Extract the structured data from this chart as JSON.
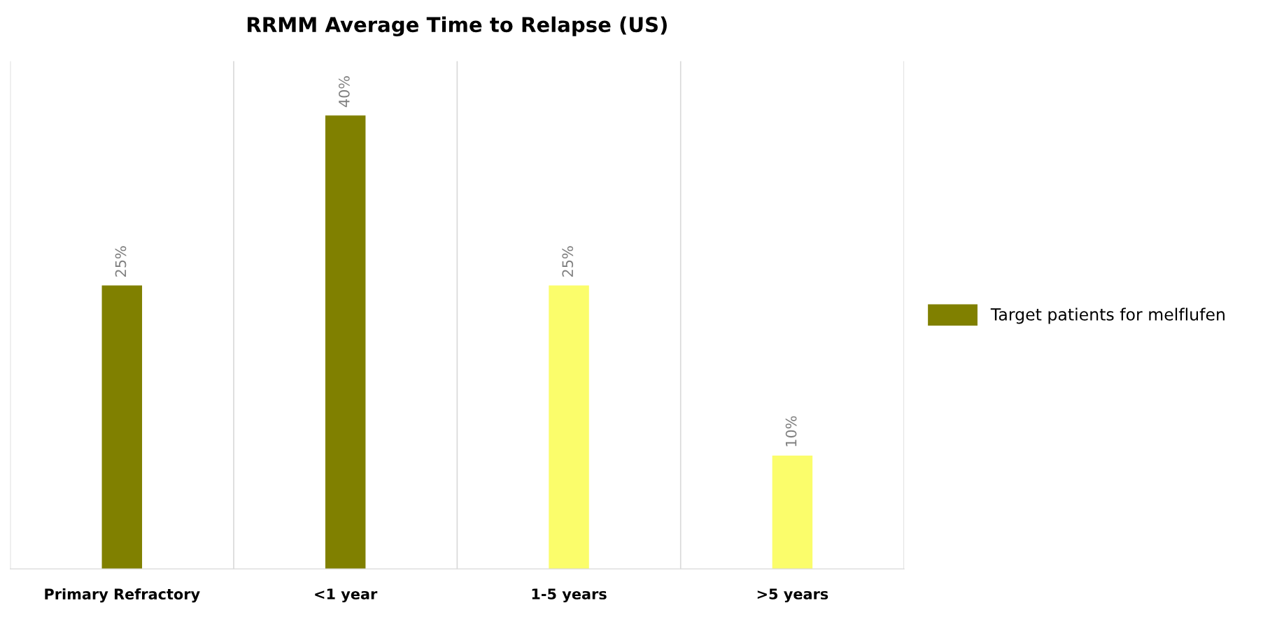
{
  "chart_data": {
    "type": "bar",
    "title": "RRMM Average Time to Relapse (US)",
    "categories": [
      "Primary Refractory",
      "<1 year",
      "1-5 years",
      ">5 years"
    ],
    "series": [
      {
        "name": "Target patients for melflufen",
        "color": "#808000",
        "values": [
          25,
          40,
          25,
          10
        ],
        "colors": [
          "#808000",
          "#808000",
          "#fbfd6b",
          "#fbfd6b"
        ],
        "value_labels": [
          "25%",
          "40%",
          "25%",
          "10%"
        ]
      }
    ],
    "grid": "x",
    "legend": "right"
  }
}
